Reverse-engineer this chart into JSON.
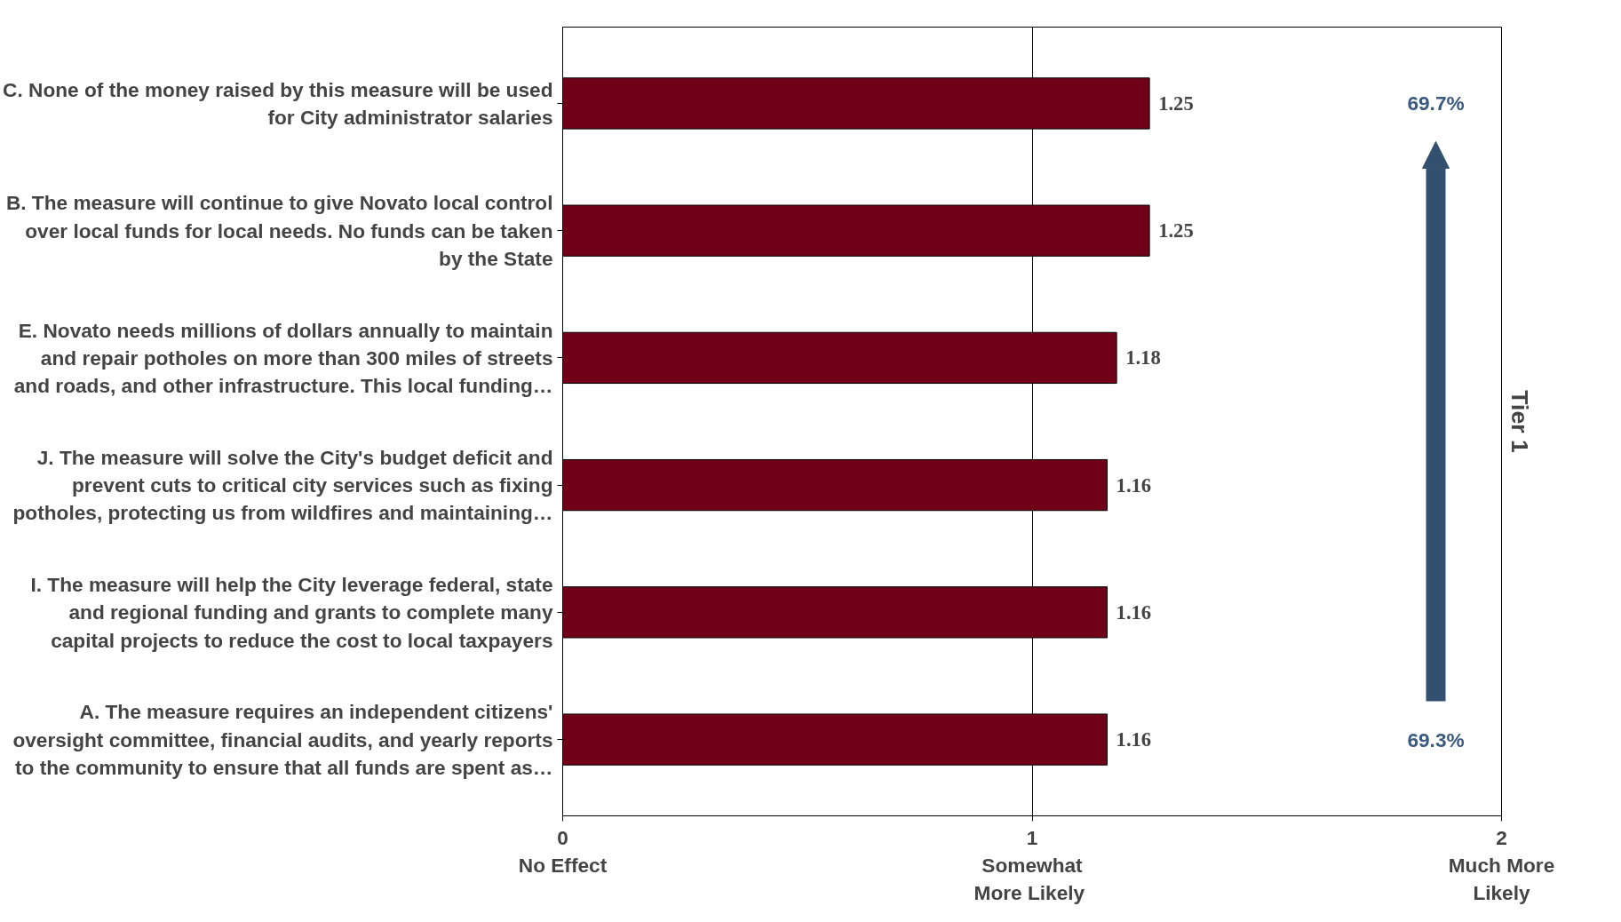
{
  "chart_data": {
    "type": "bar",
    "orientation": "horizontal",
    "categories": [
      "C. None of the money raised by this measure will be used\nfor City administrator salaries",
      "B. The measure will continue to give Novato local control\nover local funds for local needs. No funds can be taken\nby the State",
      "E. Novato needs millions of dollars annually to maintain\nand repair potholes on more than 300 miles of streets\nand roads, and other infrastructure. This local funding…",
      "J. The measure will solve the City's budget deficit and\nprevent cuts to critical city services such as fixing\npotholes, protecting us from wildfires and maintaining…",
      "I. The measure will help the City leverage federal, state\nand regional funding and grants to complete many\ncapital projects to reduce the cost to local taxpayers",
      "A. The measure requires an independent citizens'\noversight committee, financial audits, and yearly reports\nto the community to ensure that all funds are spent as…"
    ],
    "values": [
      1.25,
      1.25,
      1.18,
      1.16,
      1.16,
      1.16
    ],
    "color": "#700018",
    "data_labels": true,
    "xlim": [
      0,
      2
    ],
    "xticks": [
      {
        "value": 0,
        "label": "0\nNo Effect"
      },
      {
        "value": 1,
        "label": "1\nSomewhat\nMore  Likely"
      },
      {
        "value": 2,
        "label": "2\nMuch More\nLikely"
      }
    ],
    "grid": "x",
    "annotations": [
      "69.7%",
      "69.3%",
      "Tier 1"
    ]
  }
}
